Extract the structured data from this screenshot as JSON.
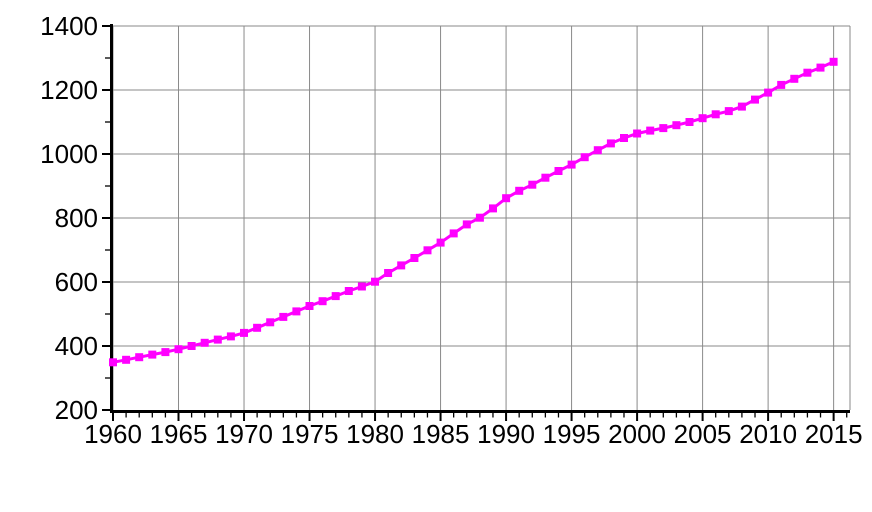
{
  "chart_data": {
    "type": "line",
    "title": "",
    "xlabel": "",
    "ylabel": "",
    "x": [
      1960,
      1961,
      1962,
      1963,
      1964,
      1965,
      1966,
      1967,
      1968,
      1969,
      1970,
      1971,
      1972,
      1973,
      1974,
      1975,
      1976,
      1977,
      1978,
      1979,
      1980,
      1981,
      1982,
      1983,
      1984,
      1985,
      1986,
      1987,
      1988,
      1989,
      1990,
      1991,
      1992,
      1993,
      1994,
      1995,
      1996,
      1997,
      1998,
      1999,
      2000,
      2001,
      2002,
      2003,
      2004,
      2005,
      2006,
      2007,
      2008,
      2009,
      2010,
      2011,
      2012,
      2013,
      2014,
      2015
    ],
    "values": [
      349,
      357,
      365,
      373,
      381,
      390,
      400,
      410,
      420,
      430,
      441,
      457,
      474,
      491,
      508,
      525,
      540,
      556,
      572,
      586,
      601,
      628,
      652,
      675,
      699,
      723,
      752,
      780,
      801,
      830,
      862,
      885,
      904,
      926,
      947,
      967,
      990,
      1012,
      1033,
      1050,
      1064,
      1073,
      1081,
      1090,
      1100,
      1112,
      1124,
      1134,
      1148,
      1170,
      1192,
      1216,
      1235,
      1254,
      1270,
      1288
    ],
    "x_major_ticks": [
      1960,
      1965,
      1970,
      1975,
      1980,
      1985,
      1990,
      1995,
      2000,
      2005,
      2010,
      2015
    ],
    "x_tick_labels": [
      "1960",
      "1965",
      "1970",
      "1975",
      "1980",
      "1985",
      "1990",
      "1995",
      "2000",
      "2005",
      "2010",
      "2015"
    ],
    "x_minor_step": 1,
    "y_major_ticks": [
      200,
      400,
      600,
      800,
      1000,
      1200,
      1400
    ],
    "y_tick_labels": [
      "200",
      "400",
      "600",
      "800",
      "1000",
      "1200",
      "1400"
    ],
    "y_minor_step": 100,
    "xlim": [
      1960,
      2016.25
    ],
    "ylim": [
      200,
      1400
    ],
    "grid": true,
    "legend": "none",
    "line_color": "#ff00ff",
    "marker": "square",
    "marker_size": 8,
    "line_width": 3,
    "grid_color": "#8a8a8a",
    "axis_color": "#000000",
    "background": "#ffffff"
  }
}
